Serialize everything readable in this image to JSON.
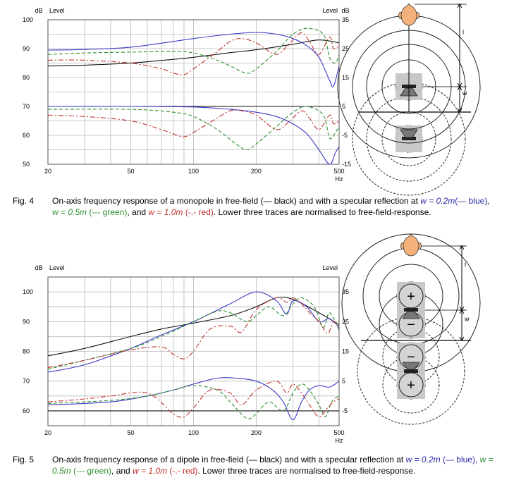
{
  "figures": [
    {
      "chart_data": {
        "type": "line",
        "xscale": "log",
        "xlim": [
          20,
          500
        ],
        "ylim_left": [
          50,
          100
        ],
        "ylim_right": [
          -15,
          35
        ],
        "x_ticks": [
          20,
          50,
          100,
          200,
          500
        ],
        "y_ticks_left": [
          50,
          60,
          70,
          80,
          90,
          100
        ],
        "y_ticks_right": [
          -15,
          -5,
          5,
          15,
          25,
          35
        ],
        "left_unit": "dB",
        "left_label": "Level",
        "right_unit": "dB",
        "right_label": "Level",
        "x_unit": "Hz",
        "grid": true,
        "series": [
          {
            "group": "absolute",
            "color": "#111111",
            "dash": "solid",
            "x": [
              20,
              30,
              50,
              80,
              100,
              150,
              200,
              300,
              400,
              500
            ],
            "y": [
              84,
              84.3,
              85,
              86.3,
              87,
              88.6,
              89.6,
              91.5,
              93,
              92
            ]
          },
          {
            "group": "absolute",
            "color": "#3a3ac8",
            "dash": "solid",
            "x": [
              20,
              30,
              50,
              80,
              100,
              150,
              200,
              250,
              300,
              350,
              400,
              450,
              470,
              500
            ],
            "y": [
              89.5,
              89.7,
              90.5,
              92.5,
              93.5,
              95,
              95.6,
              95,
              93.5,
              91,
              87,
              79,
              77,
              84
            ]
          },
          {
            "group": "absolute",
            "color": "#2f8f2f",
            "dash": "dash",
            "x": [
              20,
              30,
              50,
              80,
              100,
              130,
              150,
              180,
              200,
              250,
              300,
              350,
              420,
              450,
              480,
              500
            ],
            "y": [
              88,
              88.5,
              88.8,
              89,
              88.5,
              86,
              84,
              81.5,
              83,
              89,
              95,
              97,
              95,
              87,
              85,
              88
            ]
          },
          {
            "group": "absolute",
            "color": "#c0302a",
            "dash": "dashdot",
            "x": [
              20,
              30,
              50,
              70,
              80,
              90,
              100,
              130,
              150,
              170,
              200,
              250,
              290,
              330,
              360,
              400,
              450,
              470,
              500
            ],
            "y": [
              86,
              86,
              85,
              83,
              81.5,
              81,
              83,
              89,
              92.5,
              93.5,
              92,
              88,
              92,
              95.5,
              92.5,
              88,
              94,
              90,
              91
            ]
          },
          {
            "group": "normalised",
            "color": "#111111",
            "dash": "solid",
            "x": [
              20,
              500
            ],
            "y": [
              5,
              5
            ]
          },
          {
            "group": "normalised",
            "color": "#3a3ac8",
            "dash": "solid",
            "x": [
              20,
              50,
              100,
              150,
              200,
              250,
              300,
              350,
              400,
              450,
              480,
              500
            ],
            "y": [
              5,
              5,
              4.8,
              4,
              3,
              1.5,
              -1,
              -4.5,
              -10,
              -15,
              -11,
              -9
            ]
          },
          {
            "group": "normalised",
            "color": "#2f8f2f",
            "dash": "dash",
            "x": [
              20,
              50,
              80,
              100,
              130,
              160,
              180,
              200,
              250,
              300,
              350,
              420,
              450,
              480,
              500
            ],
            "y": [
              4,
              4,
              3,
              1.5,
              -3,
              -8,
              -10,
              -8,
              -2,
              3,
              5,
              2,
              -6,
              -4,
              -2
            ]
          },
          {
            "group": "normalised",
            "color": "#c0302a",
            "dash": "dashdot",
            "x": [
              20,
              30,
              50,
              70,
              80,
              90,
              100,
              130,
              150,
              170,
              200,
              250,
              290,
              330,
              360,
              400,
              450,
              470,
              500
            ],
            "y": [
              2,
              1.5,
              0,
              -3,
              -4.5,
              -5.5,
              -4,
              1,
              3.5,
              3.5,
              2,
              -3,
              0,
              3.5,
              1,
              -3,
              2,
              -1,
              0
            ]
          }
        ]
      },
      "caption": {
        "number": "Fig. 4",
        "parts": [
          {
            "t": "On-axis frequency response of a monopole in free-field (— black) and with a specular reflection at ",
            "c": ""
          },
          {
            "t": "w = 0.2m",
            "c": "blue it"
          },
          {
            "t": "(— blue)",
            "c": "blue"
          },
          {
            "t": ", ",
            "c": ""
          },
          {
            "t": "w = 0.5m",
            "c": "green it"
          },
          {
            "t": " (--- green)",
            "c": "green"
          },
          {
            "t": ", and ",
            "c": ""
          },
          {
            "t": "w = 1.0m",
            "c": "red it"
          },
          {
            "t": " (-.- red)",
            "c": "red"
          },
          {
            "t": ". Lower three traces are normalised to free-field-response.",
            "c": ""
          }
        ]
      }
    },
    {
      "chart_data": {
        "type": "line",
        "xscale": "log",
        "xlim": [
          20,
          500
        ],
        "ylim_left": [
          55,
          105
        ],
        "ylim_right": [
          -10,
          40
        ],
        "x_ticks": [
          20,
          50,
          100,
          200,
          500
        ],
        "y_ticks_left": [
          60,
          70,
          80,
          90,
          100
        ],
        "y_ticks_right": [
          -5,
          5,
          15,
          25,
          35
        ],
        "left_unit": "dB",
        "left_label": "Level",
        "right_unit": "",
        "right_label": "Level",
        "x_unit": "Hz",
        "grid": true,
        "series": [
          {
            "group": "absolute",
            "color": "#111111",
            "dash": "solid",
            "x": [
              20,
              30,
              50,
              70,
              100,
              150,
              200,
              250,
              300,
              400,
              500
            ],
            "y": [
              78.5,
              81,
              85,
              87.5,
              89.5,
              92,
              95,
              98,
              97.5,
              93,
              89
            ]
          },
          {
            "group": "absolute",
            "color": "#3a3ac8",
            "dash": "solid",
            "x": [
              20,
              30,
              50,
              70,
              100,
              150,
              200,
              250,
              280,
              300,
              350,
              400,
              450,
              500
            ],
            "y": [
              73,
              75.5,
              81,
              85.5,
              90,
              96,
              100,
              97,
              92.5,
              97,
              95,
              90,
              91,
              88
            ]
          },
          {
            "group": "absolute",
            "color": "#2f8f2f",
            "dash": "dash",
            "x": [
              20,
              30,
              50,
              70,
              100,
              130,
              150,
              180,
              200,
              230,
              270,
              300,
              330,
              380,
              420,
              450,
              500
            ],
            "y": [
              74,
              77,
              81,
              85,
              90,
              93.5,
              93,
              90,
              92,
              95,
              92,
              96,
              98,
              95,
              88,
              93,
              87
            ]
          },
          {
            "group": "absolute",
            "color": "#c0302a",
            "dash": "dashdot",
            "x": [
              20,
              30,
              50,
              70,
              80,
              90,
              100,
              120,
              150,
              170,
              200,
              250,
              280,
              300,
              330,
              360,
              400,
              440,
              470,
              500
            ],
            "y": [
              74.5,
              77,
              80.5,
              81.5,
              79,
              77.5,
              80,
              87.5,
              88.5,
              86.5,
              94,
              98,
              96.5,
              98,
              96,
              93,
              90,
              86,
              90,
              88
            ]
          },
          {
            "group": "normalised",
            "color": "#111111",
            "dash": "solid",
            "x": [
              20,
              500
            ],
            "y": [
              -5,
              -5
            ]
          },
          {
            "group": "normalised",
            "color": "#3a3ac8",
            "dash": "solid",
            "x": [
              20,
              40,
              60,
              80,
              100,
              130,
              160,
              200,
              240,
              270,
              300,
              330,
              360,
              400,
              450,
              500
            ],
            "y": [
              -3,
              -2,
              0,
              2,
              4,
              6,
              6,
              5,
              2,
              -2,
              -8,
              -2,
              2,
              3.5,
              3,
              5
            ]
          },
          {
            "group": "normalised",
            "color": "#2f8f2f",
            "dash": "dash",
            "x": [
              20,
              40,
              60,
              80,
              100,
              130,
              150,
              180,
              200,
              230,
              270,
              300,
              330,
              360,
              400,
              430,
              460,
              500
            ],
            "y": [
              -2.5,
              -1.5,
              0,
              2,
              3.5,
              2,
              -2,
              -7.5,
              -6,
              -2,
              -5,
              1,
              4,
              2,
              -3,
              -7,
              -2,
              0
            ]
          },
          {
            "group": "normalised",
            "color": "#c0302a",
            "dash": "dashdot",
            "x": [
              20,
              30,
              40,
              60,
              80,
              90,
              100,
              120,
              150,
              170,
              200,
              250,
              280,
              300,
              330,
              360,
              400,
              440,
              470,
              500
            ],
            "y": [
              -2,
              -1,
              0,
              1,
              -6,
              -7,
              -4,
              2,
              1,
              -3,
              2,
              5,
              1,
              4,
              1,
              -3,
              -7,
              -4,
              -2,
              -1
            ]
          }
        ]
      },
      "caption": {
        "number": "Fig. 5",
        "parts": [
          {
            "t": "On-axis frequency response of a dipole in free-field (— black) and with a specular reflection at ",
            "c": ""
          },
          {
            "t": "w = 0.2m",
            "c": "blue it"
          },
          {
            "t": " (— blue),",
            "c": "blue"
          },
          {
            "t": " ",
            "c": ""
          },
          {
            "t": "w = 0.5m",
            "c": "green it"
          },
          {
            "t": " (--- green)",
            "c": "green"
          },
          {
            "t": ", and ",
            "c": ""
          },
          {
            "t": "w = 1.0m",
            "c": "red it"
          },
          {
            "t": " (-.- red)",
            "c": "red"
          },
          {
            "t": ". Lower three traces are normalised to free-field-response.",
            "c": ""
          }
        ]
      }
    }
  ],
  "diagrams": [
    {
      "kind": "monopole",
      "source_symbols": [],
      "dim_labels": [
        "l",
        "w"
      ]
    },
    {
      "kind": "dipole",
      "source_symbols": [
        "+",
        "−",
        "−",
        "+"
      ],
      "dim_labels": [
        "l",
        "w"
      ]
    }
  ],
  "colors": {
    "black": "#111111",
    "blue": "#3a3ac8",
    "green": "#2f8f2f",
    "red": "#c0302a",
    "grid": "#b8b8b8",
    "head": "#f4b27a",
    "source_box": "#c8c8c8"
  }
}
